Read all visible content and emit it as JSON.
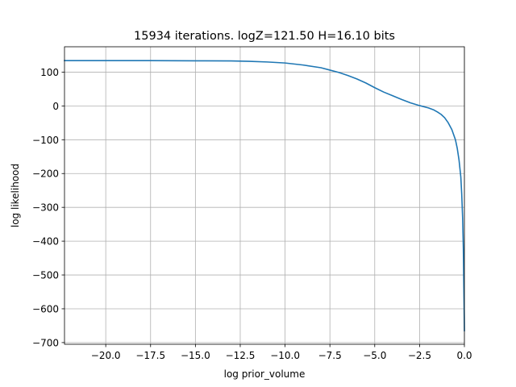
{
  "chart_data": {
    "type": "line",
    "title": "15934 iterations. logZ=121.50 H=16.10 bits",
    "xlabel": "log prior_volume",
    "ylabel": "log likelihood",
    "xlim": [
      -22.3,
      0.0
    ],
    "ylim": [
      -705,
      175
    ],
    "grid": true,
    "xticks": [
      -20.0,
      -17.5,
      -15.0,
      -12.5,
      -10.0,
      -7.5,
      -5.0,
      -2.5,
      0.0
    ],
    "xtick_labels": [
      "−20.0",
      "−17.5",
      "−15.0",
      "−12.5",
      "−10.0",
      "−7.5",
      "−5.0",
      "−2.5",
      "0.0"
    ],
    "yticks": [
      100,
      0,
      -100,
      -200,
      -300,
      -400,
      -500,
      -600,
      -700
    ],
    "ytick_labels": [
      "100",
      "0",
      "−100",
      "−200",
      "−300",
      "−400",
      "−500",
      "−600",
      "−700"
    ],
    "series": [
      {
        "color": "#1f77b4",
        "points": [
          [
            -22.3,
            134
          ],
          [
            -20.0,
            134
          ],
          [
            -17.5,
            134
          ],
          [
            -15.0,
            133.5
          ],
          [
            -13.0,
            133
          ],
          [
            -12.0,
            132
          ],
          [
            -11.0,
            130
          ],
          [
            -10.0,
            127
          ],
          [
            -9.0,
            121
          ],
          [
            -8.0,
            113
          ],
          [
            -7.5,
            106
          ],
          [
            -7.0,
            99
          ],
          [
            -6.5,
            90
          ],
          [
            -6.0,
            80
          ],
          [
            -5.5,
            68
          ],
          [
            -5.0,
            54
          ],
          [
            -4.5,
            41
          ],
          [
            -4.0,
            30
          ],
          [
            -3.5,
            19
          ],
          [
            -3.0,
            9
          ],
          [
            -2.5,
            1
          ],
          [
            -2.0,
            -6
          ],
          [
            -1.7,
            -12
          ],
          [
            -1.5,
            -18
          ],
          [
            -1.3,
            -25
          ],
          [
            -1.1,
            -35
          ],
          [
            -0.9,
            -50
          ],
          [
            -0.7,
            -70
          ],
          [
            -0.5,
            -100
          ],
          [
            -0.4,
            -125
          ],
          [
            -0.3,
            -160
          ],
          [
            -0.2,
            -210
          ],
          [
            -0.15,
            -260
          ],
          [
            -0.1,
            -330
          ],
          [
            -0.06,
            -420
          ],
          [
            -0.03,
            -540
          ],
          [
            -0.01,
            -620
          ],
          [
            0.0,
            -665
          ]
        ]
      }
    ]
  }
}
